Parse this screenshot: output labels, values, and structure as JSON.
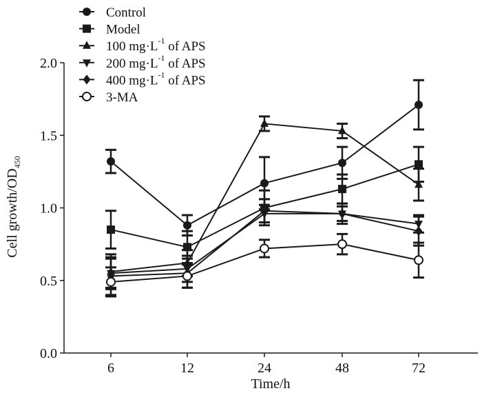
{
  "chart_data": {
    "type": "line",
    "title": "",
    "xlabel": "Time/h",
    "ylabel_main": "Cell growth/OD",
    "ylabel_sub": "450",
    "categories": [
      "6",
      "12",
      "24",
      "48",
      "72"
    ],
    "ylim": [
      0.0,
      2.0
    ],
    "yticks": [
      "0.0",
      "0.5",
      "1.0",
      "1.5",
      "2.0"
    ],
    "ytick_values": [
      0.0,
      0.5,
      1.0,
      1.5,
      2.0
    ],
    "grid": false,
    "legend_position": "top-left",
    "series": [
      {
        "name": "Control",
        "marker": "circle",
        "values": [
          1.32,
          0.88,
          1.17,
          1.31,
          1.71
        ],
        "errors": [
          0.08,
          0.07,
          0.18,
          0.11,
          0.17
        ]
      },
      {
        "name": "Model",
        "marker": "square",
        "values": [
          0.85,
          0.73,
          1.0,
          1.13,
          1.3
        ],
        "errors": [
          0.13,
          0.11,
          0.12,
          0.1,
          0.12
        ]
      },
      {
        "name": "100 mg·L-1 of APS",
        "marker": "triangle-up",
        "values": [
          0.56,
          0.62,
          1.58,
          1.53,
          1.16
        ],
        "errors": [
          0.12,
          0.09,
          0.05,
          0.05,
          0.11
        ]
      },
      {
        "name": "200 mg·L-1 of APS",
        "marker": "triangle-down",
        "values": [
          0.55,
          0.58,
          0.96,
          0.96,
          0.89
        ],
        "errors": [
          0.1,
          0.09,
          0.06,
          0.05,
          0.06
        ]
      },
      {
        "name": "400 mg·L-1 of APS",
        "marker": "diamond",
        "values": [
          0.53,
          0.55,
          0.98,
          0.96,
          0.84
        ],
        "errors": [
          0.13,
          0.1,
          0.08,
          0.07,
          0.1
        ]
      },
      {
        "name": "3-MA",
        "marker": "open-circle",
        "values": [
          0.49,
          0.53,
          0.72,
          0.75,
          0.64
        ],
        "errors": [
          0.1,
          0.08,
          0.06,
          0.07,
          0.12
        ]
      }
    ],
    "legend_entries": [
      {
        "pre": "Control",
        "sup": "",
        "post": ""
      },
      {
        "pre": "Model",
        "sup": "",
        "post": ""
      },
      {
        "pre": "100 mg·L",
        "sup": "-1",
        "post": " of APS"
      },
      {
        "pre": "200 mg·L",
        "sup": "-1",
        "post": " of APS"
      },
      {
        "pre": "400 mg·L",
        "sup": "-1",
        "post": " of APS"
      },
      {
        "pre": "3-MA",
        "sup": "",
        "post": ""
      }
    ]
  }
}
